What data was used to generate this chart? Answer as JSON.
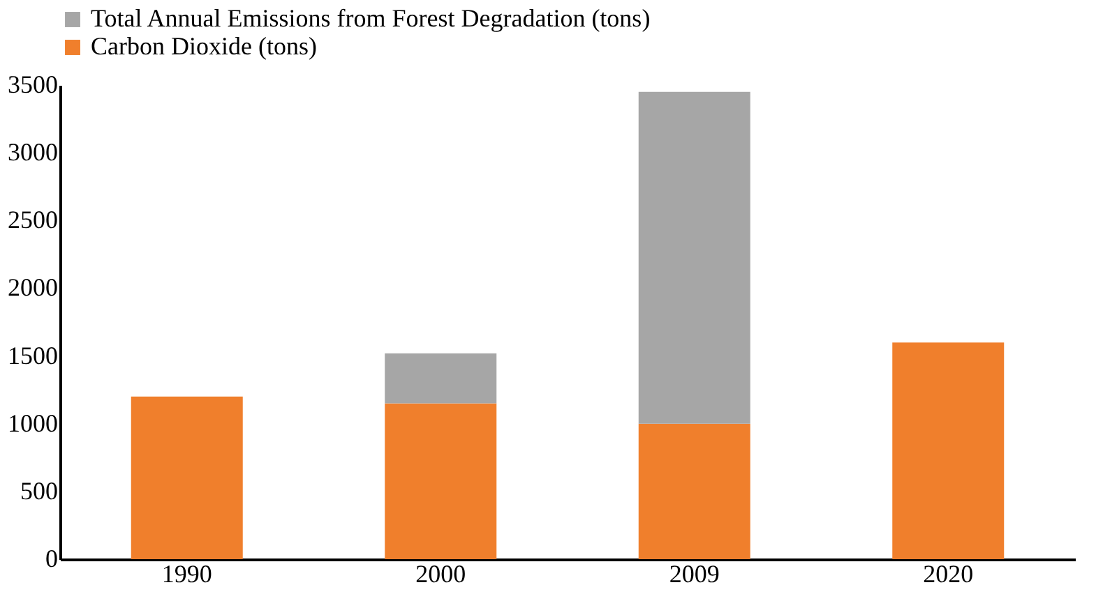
{
  "chart_data": {
    "type": "bar",
    "stacked": true,
    "categories": [
      "1990",
      "2000",
      "2009",
      "2020"
    ],
    "series": [
      {
        "name": "Carbon Dioxide (tons)",
        "color": "#f07f2c",
        "values": [
          1200,
          1150,
          1000,
          1600
        ]
      },
      {
        "name": "Total Annual Emissions from Forest Degradation (tons)",
        "color": "#a6a6a6",
        "values": [
          null,
          370,
          2450,
          null
        ]
      }
    ],
    "ylim": [
      0,
      3500
    ],
    "yticks": [
      0,
      500,
      1000,
      1500,
      2000,
      2500,
      3000,
      3500
    ],
    "grid": false,
    "legend": "top"
  }
}
